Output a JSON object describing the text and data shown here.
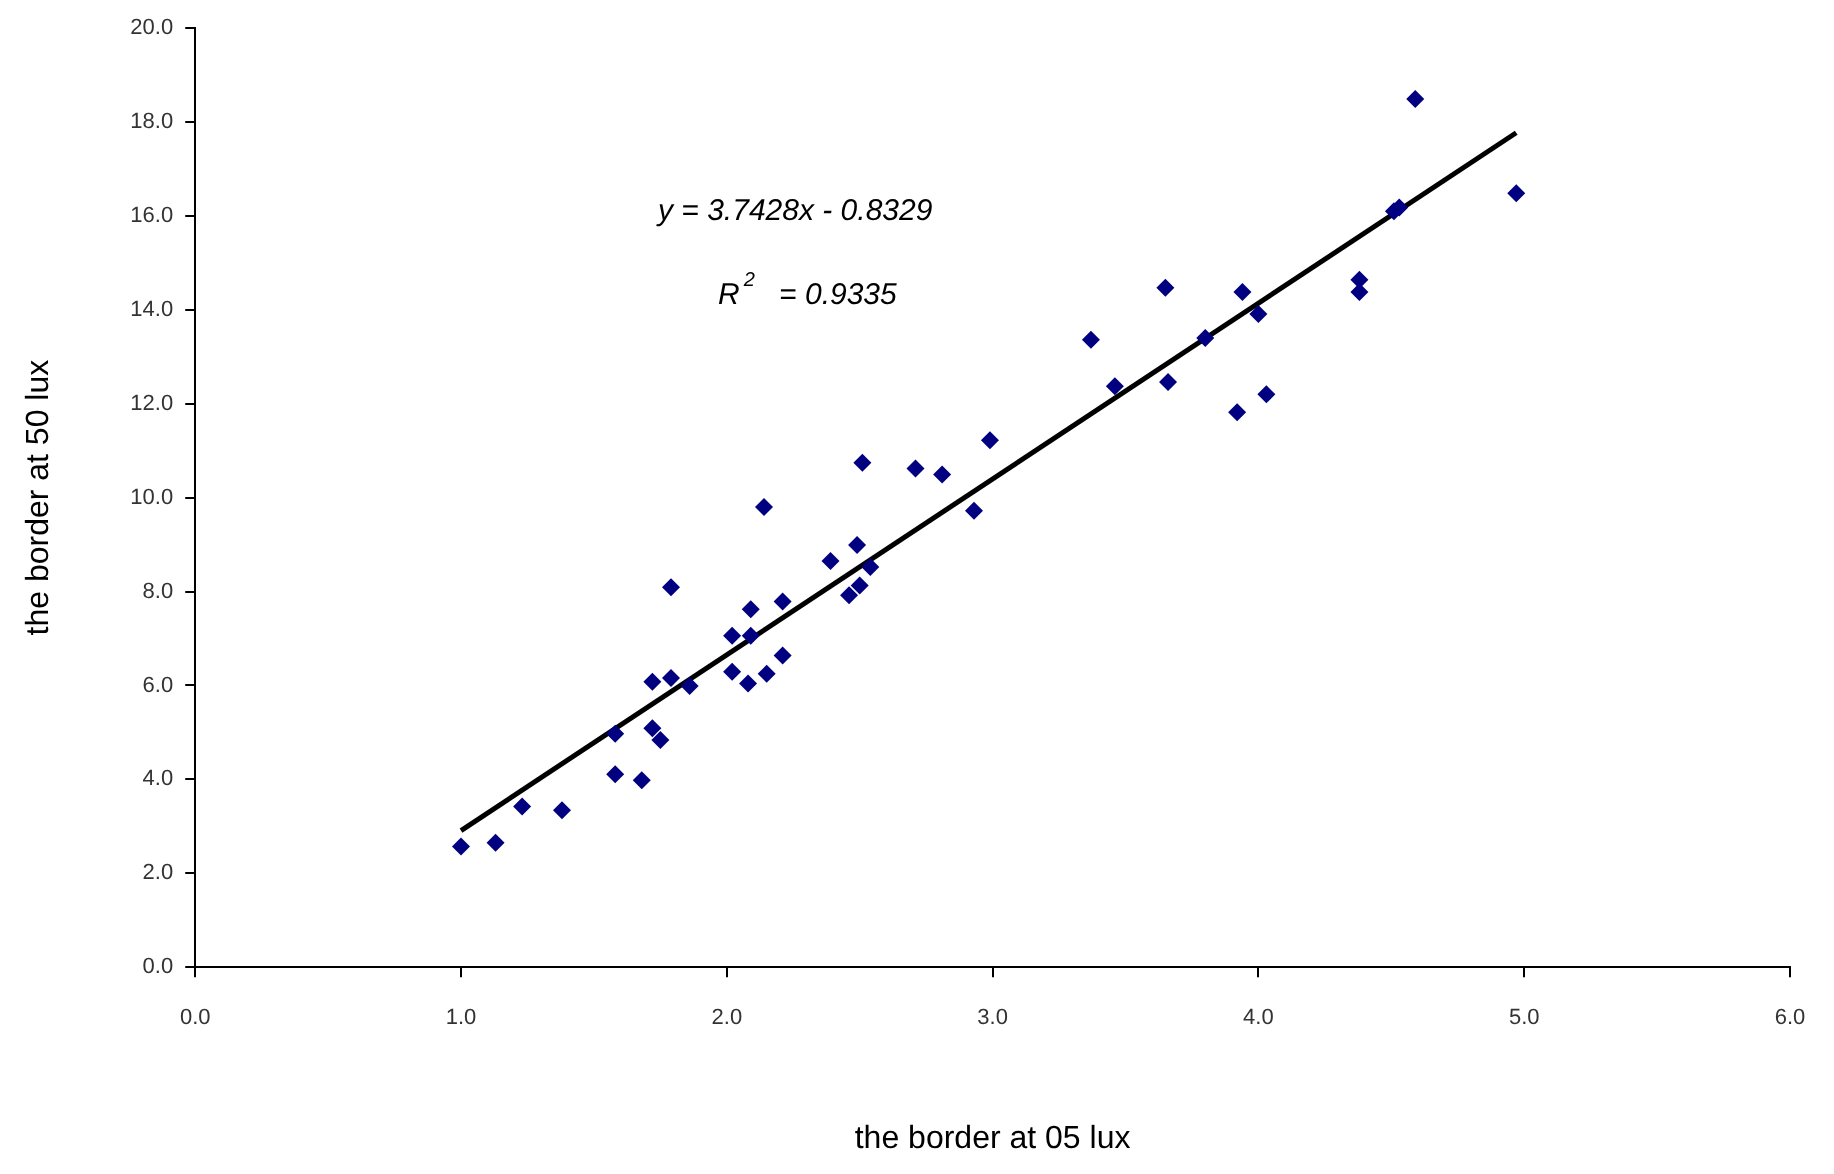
{
  "chart_data": {
    "type": "scatter",
    "xlabel": "the border at 05 lux",
    "ylabel": "the border at 50 lux",
    "xlim": [
      0,
      6
    ],
    "xticks": [
      {
        "value": 0,
        "label": "0.0"
      },
      {
        "value": 1,
        "label": "1.0"
      },
      {
        "value": 2,
        "label": "2.0"
      },
      {
        "value": 3,
        "label": "3.0"
      },
      {
        "value": 4,
        "label": "4.0"
      },
      {
        "value": 5,
        "label": "5.0"
      },
      {
        "value": 6,
        "label": "6.0"
      }
    ],
    "ylim": [
      0,
      20
    ],
    "yticks": [
      {
        "value": 0,
        "label": "0.0"
      },
      {
        "value": 2,
        "label": "2.0"
      },
      {
        "value": 4,
        "label": "4.0"
      },
      {
        "value": 6,
        "label": "6.0"
      },
      {
        "value": 8,
        "label": "8.0"
      },
      {
        "value": 10,
        "label": "10.0"
      },
      {
        "value": 12,
        "label": "12.0"
      },
      {
        "value": 14,
        "label": "14.0"
      },
      {
        "value": 16,
        "label": "16.0"
      },
      {
        "value": 18,
        "label": "18.0"
      },
      {
        "value": 20,
        "label": "20.0"
      }
    ],
    "grid": false,
    "legend": false,
    "marker": "diamond",
    "annotations": [
      "y = 3.7428x - 0.8329",
      "R$^{2}$ = 0.9335"
    ],
    "series": [
      {
        "type": "scatter",
        "color": "#000080",
        "x": [
          1.0,
          1.13,
          1.23,
          1.38,
          1.58,
          1.58,
          1.68,
          1.72,
          1.75,
          1.72,
          1.79,
          1.86,
          1.79,
          2.02,
          2.08,
          2.15,
          2.21,
          2.02,
          2.09,
          2.09,
          2.21,
          2.14,
          2.39,
          2.46,
          2.49,
          2.5,
          2.54,
          2.51,
          2.71,
          2.81,
          2.93,
          2.99,
          3.37,
          3.46,
          3.65,
          3.66,
          3.8,
          3.92,
          3.94,
          4.0,
          4.03,
          4.38,
          4.38,
          4.51,
          4.53,
          4.59,
          4.97
        ],
        "values": [
          2.57,
          2.65,
          3.42,
          3.34,
          4.97,
          4.11,
          3.98,
          5.09,
          4.84,
          6.08,
          6.16,
          5.99,
          8.09,
          6.29,
          6.04,
          6.25,
          6.64,
          7.06,
          7.06,
          7.62,
          7.79,
          9.8,
          8.65,
          7.92,
          8.99,
          8.13,
          8.52,
          10.74,
          10.62,
          10.49,
          9.72,
          11.22,
          13.36,
          12.37,
          14.47,
          12.46,
          13.4,
          11.82,
          14.38,
          13.91,
          12.2,
          14.64,
          14.38,
          16.1,
          16.18,
          18.49,
          16.48
        ]
      },
      {
        "type": "line",
        "color": "#000000",
        "marker": "none",
        "x": [
          1.0,
          4.97
        ],
        "values": [
          2.91,
          17.77
        ]
      }
    ]
  }
}
